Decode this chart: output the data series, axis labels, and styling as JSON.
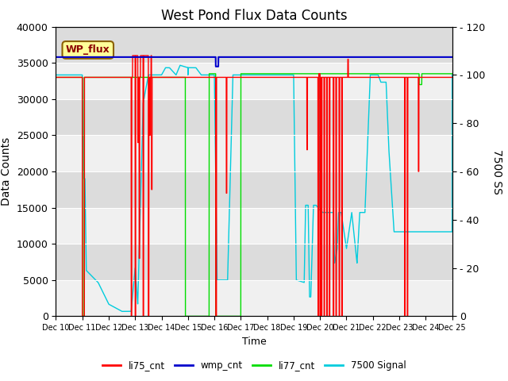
{
  "title": "West Pond Flux Data Counts",
  "xlabel": "Time",
  "ylabel_left": "Data Counts",
  "ylabel_right": "7500 SS",
  "xlim_days": [
    10,
    25
  ],
  "ylim_left": [
    0,
    40000
  ],
  "ylim_right": [
    0,
    120
  ],
  "yticks_left": [
    0,
    5000,
    10000,
    15000,
    20000,
    25000,
    30000,
    35000,
    40000
  ],
  "yticks_right": [
    0,
    20,
    40,
    60,
    80,
    100,
    120
  ],
  "xtick_labels": [
    "Dec 10",
    "Dec 11",
    "Dec 12",
    "Dec 13",
    "Dec 14",
    "Dec 15",
    "Dec 16",
    "Dec 17",
    "Dec 18",
    "Dec 19",
    "Dec 20",
    "Dec 21",
    "Dec 22",
    "Dec 23",
    "Dec 24",
    "Dec 25"
  ],
  "background_color": "#e8e8e8",
  "band_color_light": "#f0f0f0",
  "band_color_dark": "#dcdcdc",
  "legend_label": "WP_flux",
  "legend_box_color": "#ffff99",
  "legend_box_edge": "#8b6000",
  "series_colors": {
    "li75_cnt": "#ff0000",
    "wmp_cnt": "#0000cc",
    "li77_cnt": "#00dd00",
    "signal7500": "#00ccdd"
  },
  "wmp_value": 35800,
  "li77_base": 33000,
  "li75_base": 33000,
  "signal7500_scale": 333.33
}
